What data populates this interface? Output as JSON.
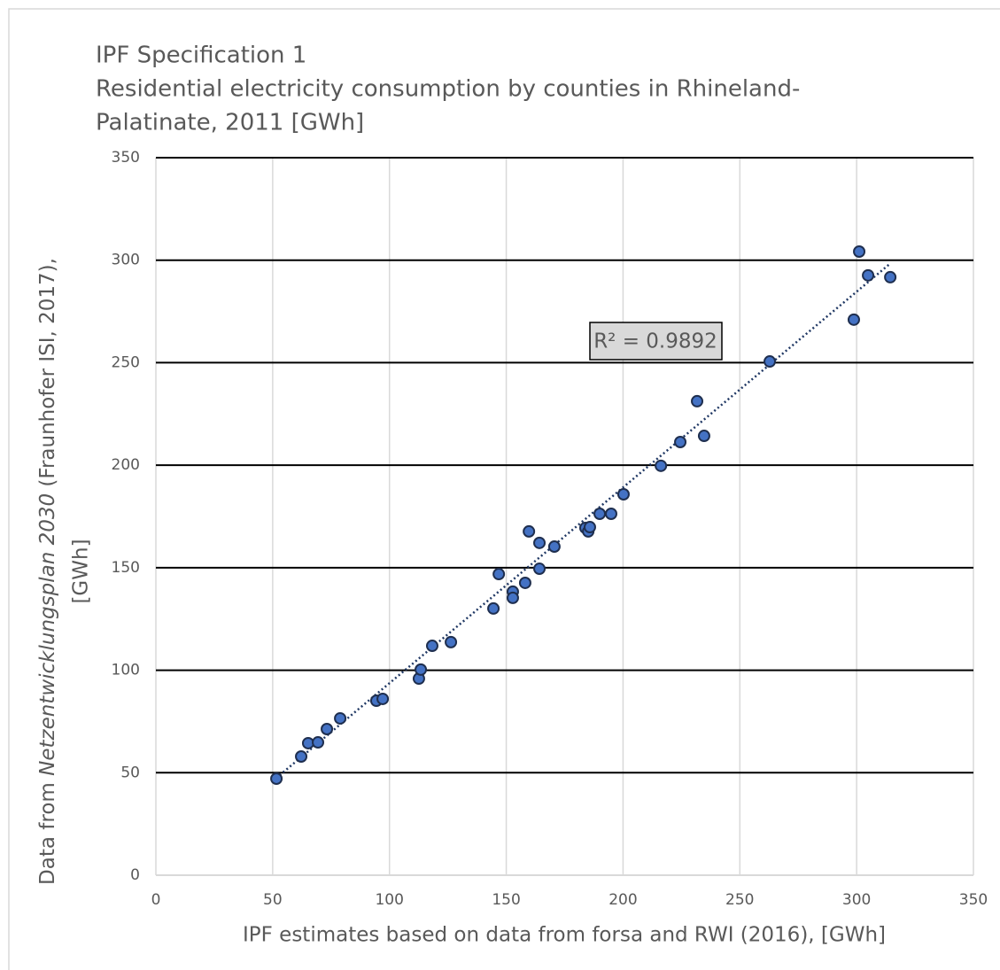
{
  "chart_data": {
    "type": "scatter",
    "title": "IPF Specification 1",
    "subtitle": [
      "Residential electricity consumption by counties in Rhineland-",
      "Palatinate, 2011 [GWh]"
    ],
    "xlabel": "IPF estimates based on data from forsa and RWI (2016), [GWh]",
    "ylabel": [
      "Data from ",
      "Netzentwicklungsplan 2030",
      " (Fraunhofer ISI, 2017),",
      "[GWh]"
    ],
    "annotation": "R² = 0.9892",
    "xlim": [
      0,
      350
    ],
    "ylim": [
      0,
      350
    ],
    "xticks": [
      0,
      50,
      100,
      150,
      200,
      250,
      300,
      350
    ],
    "yticks": [
      0,
      50,
      100,
      150,
      200,
      250,
      300,
      350
    ],
    "grid": true,
    "color": "#4472c4",
    "x": [
      51.6,
      62.2,
      65.2,
      69.4,
      73.2,
      78.9,
      94.4,
      97.1,
      112.6,
      113.4,
      118.3,
      126.3,
      144.5,
      146.8,
      152.8,
      152.8,
      158.1,
      159.7,
      164.2,
      164.2,
      170.6,
      183.9,
      185.1,
      185.8,
      190.0,
      194.9,
      200.2,
      216.2,
      224.5,
      231.7,
      234.7,
      262.8,
      298.8,
      301.1,
      304.9,
      314.4
    ],
    "values": [
      47.1,
      57.9,
      64.4,
      64.8,
      71.3,
      76.5,
      85.1,
      86.0,
      95.9,
      100.3,
      111.9,
      113.7,
      130.1,
      146.9,
      138.3,
      135.3,
      142.6,
      167.7,
      162.1,
      149.5,
      160.3,
      169.4,
      167.7,
      169.8,
      176.3,
      176.3,
      185.8,
      199.7,
      211.3,
      231.2,
      214.3,
      250.6,
      271.0,
      304.2,
      292.6,
      291.7
    ],
    "trendline": {
      "x": [
        53,
        314
      ],
      "y": [
        48.8,
        298
      ]
    }
  }
}
